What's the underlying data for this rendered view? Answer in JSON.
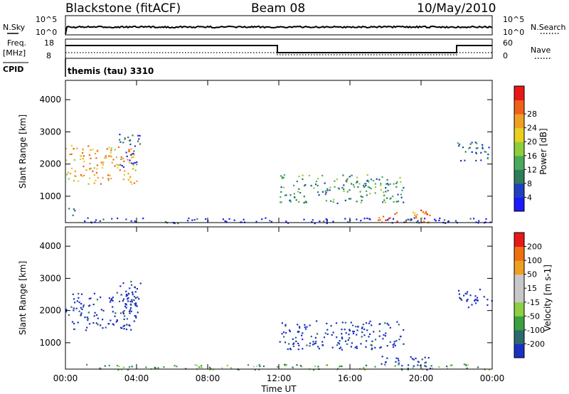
{
  "header": {
    "title": "Blackstone (fitACF)",
    "beam": "Beam 08",
    "date": "10/May/2010"
  },
  "panels": {
    "nsky_label": "N.Sky",
    "nsearch_label": "N.Search",
    "log_tick_top": "10^5",
    "log_tick_bottom": "10^0",
    "freq_label": "Freq.",
    "freq_unit": "[MHz]",
    "freq_ticks": [
      "18",
      "8"
    ],
    "nave_label": "Nave",
    "nave_ticks": [
      "60",
      "0"
    ],
    "cpid_label": "CPID",
    "cpid_text": "themis (tau) 3310"
  },
  "chart_data": [
    {
      "type": "heatmap",
      "name": "power",
      "ylabel": "Slant Range [km]",
      "ylim": [
        180,
        4600
      ],
      "y_ticks": [
        "1000",
        "2000",
        "3000",
        "4000"
      ],
      "colorbar_label": "Power [dB]",
      "colorbar_ticks": [
        "4",
        "8",
        "12",
        "16",
        "20",
        "24",
        "28"
      ],
      "colorscale": [
        "#1a1aff",
        "#2040c0",
        "#2e7d5a",
        "#4aaa5a",
        "#8ccf3a",
        "#e8d020",
        "#f0a020",
        "#f06018",
        "#e81818"
      ],
      "regions": [
        {
          "t": [
            0.0,
            4.0
          ],
          "r": [
            1400,
            2600
          ],
          "level": 0.7
        },
        {
          "t": [
            3.0,
            4.2
          ],
          "r": [
            1900,
            2950
          ],
          "level": 0.2
        },
        {
          "t": [
            0.1,
            0.5
          ],
          "r": [
            300,
            700
          ],
          "level": 0.2
        },
        {
          "t": [
            12.0,
            19.0
          ],
          "r": [
            800,
            1700
          ],
          "level": 0.35
        },
        {
          "t": [
            17.5,
            20.5
          ],
          "r": [
            180,
            600
          ],
          "level": 0.8
        },
        {
          "t": [
            22.0,
            24.0
          ],
          "r": [
            2100,
            2700
          ],
          "level": 0.2
        },
        {
          "t": [
            1.0,
            24.0
          ],
          "r": [
            180,
            350
          ],
          "level": 0.1
        }
      ]
    },
    {
      "type": "heatmap",
      "name": "velocity",
      "ylabel": "Slant Range [km]",
      "ylim": [
        180,
        4600
      ],
      "y_ticks": [
        "1000",
        "2000",
        "3000",
        "4000"
      ],
      "colorbar_label": "Velocity [m s-1]",
      "colorbar_ticks": [
        "200",
        "100",
        "50",
        "15",
        "-15",
        "-50",
        "-100",
        "-200"
      ],
      "colorscale": [
        "#1a30c0",
        "#2a6a6a",
        "#3aa040",
        "#8ad040",
        "#c8c8c8",
        "#c8c8c8",
        "#f0a020",
        "#f07010",
        "#e81818"
      ],
      "regions": [
        {
          "t": [
            0.0,
            4.0
          ],
          "r": [
            1400,
            2600
          ],
          "level": 0.0
        },
        {
          "t": [
            3.0,
            4.2
          ],
          "r": [
            1900,
            2950
          ],
          "level": 0.0
        },
        {
          "t": [
            12.0,
            19.0
          ],
          "r": [
            800,
            1700
          ],
          "level": 0.0
        },
        {
          "t": [
            17.5,
            20.5
          ],
          "r": [
            180,
            600
          ],
          "level": 0.0
        },
        {
          "t": [
            22.0,
            24.0
          ],
          "r": [
            2100,
            2700
          ],
          "level": 0.0
        },
        {
          "t": [
            1.0,
            24.0
          ],
          "r": [
            180,
            350
          ],
          "level": 0.3
        }
      ]
    }
  ],
  "x_axis": {
    "xlabel": "Time UT",
    "xlim": [
      0,
      24
    ],
    "ticks": [
      "00:00",
      "04:00",
      "08:00",
      "12:00",
      "16:00",
      "20:00",
      "00:00"
    ]
  }
}
